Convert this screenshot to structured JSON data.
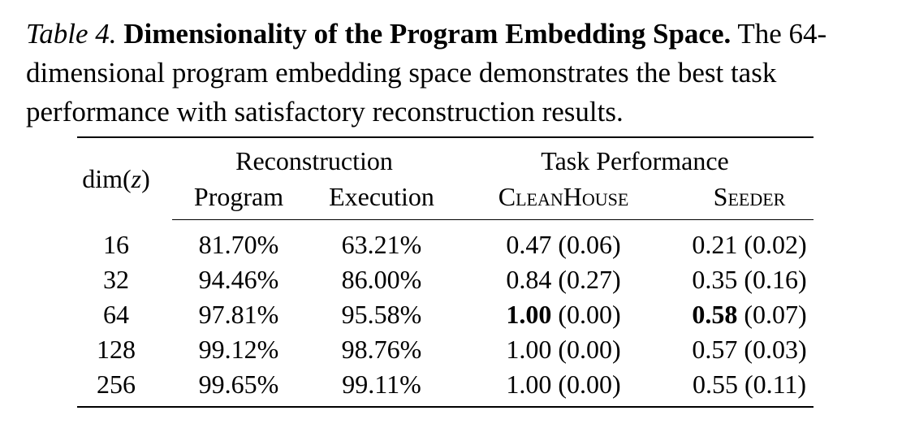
{
  "caption": {
    "label": "Table 4.",
    "title": "Dimensionality of the Program Embedding Space.",
    "text": "The 64-dimensional program embedding space demonstrates the best task performance with satisfactory reconstruction results."
  },
  "table": {
    "row_header": "dim(z)",
    "groups": [
      "Reconstruction",
      "Task Performance"
    ],
    "columns": [
      "Program",
      "Execution",
      "CleanHouse",
      "Seeder"
    ],
    "rows": [
      {
        "dim": "16",
        "program": "81.70%",
        "execution": "63.21%",
        "clean_main": "0.47",
        "clean_std": "(0.06)",
        "seeder_main": "0.21",
        "seeder_std": "(0.02)"
      },
      {
        "dim": "32",
        "program": "94.46%",
        "execution": "86.00%",
        "clean_main": "0.84",
        "clean_std": "(0.27)",
        "seeder_main": "0.35",
        "seeder_std": "(0.16)"
      },
      {
        "dim": "64",
        "program": "97.81%",
        "execution": "95.58%",
        "clean_main": "1.00",
        "clean_std": "(0.00)",
        "seeder_main": "0.58",
        "seeder_std": "(0.07)"
      },
      {
        "dim": "128",
        "program": "99.12%",
        "execution": "98.76%",
        "clean_main": "1.00",
        "clean_std": "(0.00)",
        "seeder_main": "0.57",
        "seeder_std": "(0.03)"
      },
      {
        "dim": "256",
        "program": "99.65%",
        "execution": "99.11%",
        "clean_main": "1.00",
        "clean_std": "(0.00)",
        "seeder_main": "0.55",
        "seeder_std": "(0.11)"
      }
    ]
  }
}
